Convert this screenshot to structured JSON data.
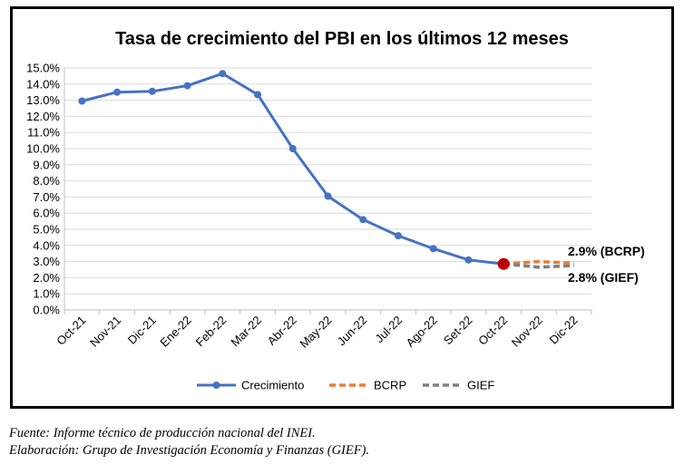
{
  "chart_data": {
    "type": "line",
    "title": "Tasa de crecimiento del PBI en los últimos 12 meses",
    "xlabel": "",
    "ylabel": "",
    "categories": [
      "Oct-21",
      "Nov-21",
      "Dic-21",
      "Ene-22",
      "Feb-22",
      "Mar-22",
      "Abr-22",
      "May-22",
      "Jun-22",
      "Jul-22",
      "Ago-22",
      "Set-22",
      "Oct-22",
      "Nov-22",
      "Dic-22"
    ],
    "ylim": [
      0,
      15
    ],
    "ytick_labels": [
      "0.0%",
      "1.0%",
      "2.0%",
      "3.0%",
      "4.0%",
      "5.0%",
      "6.0%",
      "7.0%",
      "8.0%",
      "9.0%",
      "10.0%",
      "11.0%",
      "12.0%",
      "13.0%",
      "14.0%",
      "15.0%"
    ],
    "grid": true,
    "legend_position": "bottom",
    "series": [
      {
        "name": "Crecimiento",
        "color": "#4472C4",
        "style": "solid-markers",
        "values": [
          12.95,
          13.5,
          13.55,
          13.9,
          14.65,
          13.35,
          10.0,
          7.05,
          5.6,
          4.6,
          3.8,
          3.1,
          2.85,
          null,
          null
        ]
      },
      {
        "name": "BCRP",
        "color": "#ED7D31",
        "style": "dashed",
        "values": [
          null,
          null,
          null,
          null,
          null,
          null,
          null,
          null,
          null,
          null,
          null,
          null,
          2.85,
          3.0,
          2.9
        ]
      },
      {
        "name": "GIEF",
        "color": "#7F7F7F",
        "style": "dashed",
        "values": [
          null,
          null,
          null,
          null,
          null,
          null,
          null,
          null,
          null,
          null,
          null,
          null,
          2.85,
          2.65,
          2.75
        ]
      }
    ],
    "highlight_point": {
      "category": "Oct-22",
      "value": 2.85,
      "color": "#C00000"
    },
    "annotations": [
      {
        "text": "2.9% (BCRP)",
        "series": "BCRP"
      },
      {
        "text": "2.8% (GIEF)",
        "series": "GIEF"
      }
    ]
  },
  "footer": {
    "source": "Fuente: Informe técnico de producción nacional del INEI.",
    "author": "Elaboración: Grupo de Investigación Economía y Finanzas (GIEF)."
  }
}
